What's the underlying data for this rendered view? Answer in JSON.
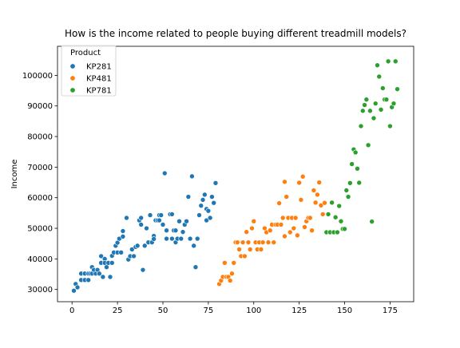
{
  "chart_data": {
    "type": "scatter",
    "title": "How is the income related to people buying different treadmill models?",
    "xlabel": "",
    "ylabel": "Income",
    "xlim": [
      -8,
      188
    ],
    "ylim": [
      26000,
      109500
    ],
    "x_ticks": [
      0,
      25,
      50,
      75,
      100,
      125,
      150,
      175
    ],
    "y_ticks": [
      30000,
      40000,
      50000,
      60000,
      70000,
      80000,
      90000,
      100000
    ],
    "grid": false,
    "legend": {
      "title": "Product",
      "placement": "top-left"
    },
    "series": [
      {
        "name": "KP281",
        "color": "#1f77b4",
        "points": [
          [
            1,
            29600
          ],
          [
            2,
            31800
          ],
          [
            3,
            30700
          ],
          [
            5,
            33100
          ],
          [
            5,
            35200
          ],
          [
            7,
            35200
          ],
          [
            7,
            33100
          ],
          [
            9,
            35200
          ],
          [
            9,
            33100
          ],
          [
            10,
            35200
          ],
          [
            11,
            37300
          ],
          [
            11,
            35200
          ],
          [
            12,
            36400
          ],
          [
            13,
            35200
          ],
          [
            14,
            36400
          ],
          [
            15,
            35200
          ],
          [
            16,
            38700
          ],
          [
            16,
            40900
          ],
          [
            17,
            34100
          ],
          [
            18,
            40000
          ],
          [
            18,
            38700
          ],
          [
            19,
            37300
          ],
          [
            20,
            38700
          ],
          [
            21,
            34100
          ],
          [
            22,
            41000
          ],
          [
            22,
            38700
          ],
          [
            23,
            42100
          ],
          [
            24,
            44300
          ],
          [
            25,
            42100
          ],
          [
            25,
            45300
          ],
          [
            26,
            46600
          ],
          [
            27,
            42100
          ],
          [
            28,
            47300
          ],
          [
            28,
            49100
          ],
          [
            30,
            53400
          ],
          [
            31,
            39800
          ],
          [
            32,
            40900
          ],
          [
            33,
            43100
          ],
          [
            34,
            40900
          ],
          [
            35,
            43900
          ],
          [
            36,
            44300
          ],
          [
            37,
            52600
          ],
          [
            38,
            53400
          ],
          [
            38,
            51200
          ],
          [
            39,
            36400
          ],
          [
            40,
            44300
          ],
          [
            41,
            50000
          ],
          [
            42,
            45400
          ],
          [
            43,
            54300
          ],
          [
            44,
            45400
          ],
          [
            45,
            47500
          ],
          [
            45,
            46500
          ],
          [
            46,
            52600
          ],
          [
            47,
            52600
          ],
          [
            48,
            54300
          ],
          [
            48,
            52600
          ],
          [
            49,
            54300
          ],
          [
            50,
            51200
          ],
          [
            51,
            68000
          ],
          [
            52,
            46600
          ],
          [
            52,
            49300
          ],
          [
            54,
            54600
          ],
          [
            55,
            46600
          ],
          [
            55,
            54600
          ],
          [
            56,
            49300
          ],
          [
            57,
            45400
          ],
          [
            57,
            49300
          ],
          [
            58,
            46600
          ],
          [
            59,
            52300
          ],
          [
            60,
            46600
          ],
          [
            61,
            48800
          ],
          [
            62,
            51200
          ],
          [
            63,
            52300
          ],
          [
            64,
            60300
          ],
          [
            65,
            46600
          ],
          [
            66,
            67000
          ],
          [
            67,
            44300
          ],
          [
            68,
            37300
          ],
          [
            69,
            46600
          ],
          [
            70,
            54300
          ],
          [
            71,
            57400
          ],
          [
            72,
            59300
          ],
          [
            73,
            61000
          ],
          [
            74,
            56300
          ],
          [
            74,
            52600
          ],
          [
            75,
            55700
          ],
          [
            76,
            53400
          ],
          [
            77,
            60300
          ],
          [
            78,
            58300
          ],
          [
            79,
            64800
          ]
        ]
      },
      {
        "name": "KP481",
        "color": "#ff7f0e",
        "points": [
          [
            81,
            31800
          ],
          [
            82,
            32900
          ],
          [
            83,
            34100
          ],
          [
            84,
            38700
          ],
          [
            85,
            34100
          ],
          [
            86,
            34100
          ],
          [
            87,
            32900
          ],
          [
            88,
            35200
          ],
          [
            89,
            38700
          ],
          [
            90,
            45400
          ],
          [
            91,
            45400
          ],
          [
            92,
            43100
          ],
          [
            93,
            40900
          ],
          [
            94,
            45400
          ],
          [
            95,
            40900
          ],
          [
            96,
            48800
          ],
          [
            97,
            45400
          ],
          [
            98,
            43100
          ],
          [
            99,
            50000
          ],
          [
            100,
            52300
          ],
          [
            101,
            45400
          ],
          [
            102,
            43100
          ],
          [
            103,
            45400
          ],
          [
            104,
            43100
          ],
          [
            105,
            45400
          ],
          [
            106,
            50000
          ],
          [
            107,
            48700
          ],
          [
            108,
            45400
          ],
          [
            109,
            49300
          ],
          [
            110,
            51200
          ],
          [
            111,
            45400
          ],
          [
            112,
            51200
          ],
          [
            113,
            51200
          ],
          [
            114,
            58200
          ],
          [
            115,
            51200
          ],
          [
            116,
            53400
          ],
          [
            117,
            47400
          ],
          [
            117,
            65200
          ],
          [
            118,
            60300
          ],
          [
            119,
            53400
          ],
          [
            120,
            48700
          ],
          [
            121,
            53400
          ],
          [
            122,
            50000
          ],
          [
            123,
            53400
          ],
          [
            124,
            47700
          ],
          [
            125,
            64900
          ],
          [
            126,
            59300
          ],
          [
            127,
            66900
          ],
          [
            128,
            50400
          ],
          [
            129,
            52300
          ],
          [
            130,
            53400
          ],
          [
            131,
            53400
          ],
          [
            132,
            49300
          ],
          [
            133,
            62400
          ],
          [
            134,
            58400
          ],
          [
            135,
            61000
          ],
          [
            136,
            65000
          ],
          [
            137,
            57500
          ],
          [
            138,
            54600
          ],
          [
            139,
            58300
          ]
        ]
      },
      {
        "name": "KP781",
        "color": "#2ca02c",
        "points": [
          [
            140,
            48700
          ],
          [
            141,
            54600
          ],
          [
            142,
            48700
          ],
          [
            143,
            58400
          ],
          [
            144,
            48700
          ],
          [
            145,
            53600
          ],
          [
            146,
            48700
          ],
          [
            147,
            57300
          ],
          [
            148,
            52300
          ],
          [
            149,
            49800
          ],
          [
            150,
            49800
          ],
          [
            151,
            62400
          ],
          [
            152,
            60300
          ],
          [
            153,
            64800
          ],
          [
            154,
            71000
          ],
          [
            155,
            75800
          ],
          [
            156,
            74800
          ],
          [
            157,
            69500
          ],
          [
            158,
            64900
          ],
          [
            159,
            83400
          ],
          [
            160,
            88400
          ],
          [
            161,
            90300
          ],
          [
            162,
            92100
          ],
          [
            163,
            77200
          ],
          [
            164,
            88400
          ],
          [
            165,
            52200
          ],
          [
            166,
            86000
          ],
          [
            167,
            90800
          ],
          [
            168,
            103300
          ],
          [
            169,
            99600
          ],
          [
            170,
            88800
          ],
          [
            171,
            95800
          ],
          [
            172,
            92100
          ],
          [
            173,
            92100
          ],
          [
            174,
            104600
          ],
          [
            175,
            83400
          ],
          [
            176,
            89600
          ],
          [
            177,
            90800
          ],
          [
            178,
            104600
          ],
          [
            179,
            95500
          ]
        ]
      }
    ]
  }
}
